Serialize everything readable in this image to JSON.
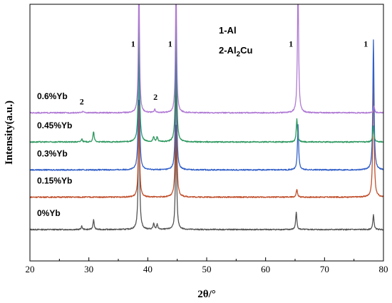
{
  "chart_data": {
    "type": "line",
    "xlabel": "2θ/°",
    "ylabel": "Intensity(a.u.)",
    "xlim": [
      20,
      80
    ],
    "x_ticks": [
      20,
      30,
      40,
      50,
      60,
      70,
      80
    ],
    "grid": false,
    "legend": {
      "placement": "top-center",
      "lines": [
        {
          "prefix": "1-Al",
          "main": "",
          "sub": "",
          "suffix": ""
        },
        {
          "prefix": "2-Al",
          "main": "",
          "sub": "2",
          "suffix": "Cu"
        }
      ]
    },
    "series": [
      {
        "name": "0%Yb",
        "color": "#555555",
        "baseline": 0,
        "peaks": [
          {
            "x": 28.8,
            "h": 0.5
          },
          {
            "x": 30.8,
            "h": 1.5
          },
          {
            "x": 38.5,
            "h": 20
          },
          {
            "x": 41.0,
            "h": 0.9
          },
          {
            "x": 41.6,
            "h": 0.8
          },
          {
            "x": 44.8,
            "h": 16
          },
          {
            "x": 65.2,
            "h": 2.7
          },
          {
            "x": 78.3,
            "h": 2.3
          }
        ]
      },
      {
        "name": "0.15%Yb",
        "color": "#c0502d",
        "baseline": 5,
        "peaks": [
          {
            "x": 38.5,
            "h": 14
          },
          {
            "x": 44.8,
            "h": 20
          },
          {
            "x": 65.3,
            "h": 1.2
          },
          {
            "x": 78.3,
            "h": 20
          }
        ]
      },
      {
        "name": "0.3%Yb",
        "color": "#3461c8",
        "baseline": 9.2,
        "peaks": [
          {
            "x": 38.5,
            "h": 20
          },
          {
            "x": 44.8,
            "h": 20
          },
          {
            "x": 65.5,
            "h": 7
          },
          {
            "x": 78.3,
            "h": 20
          }
        ]
      },
      {
        "name": "0.45%Yb",
        "color": "#2e9860",
        "baseline": 13.5,
        "peaks": [
          {
            "x": 28.8,
            "h": 0.5
          },
          {
            "x": 30.8,
            "h": 1.6
          },
          {
            "x": 38.5,
            "h": 20
          },
          {
            "x": 41.0,
            "h": 0.8
          },
          {
            "x": 41.6,
            "h": 0.8
          },
          {
            "x": 44.8,
            "h": 20
          },
          {
            "x": 65.3,
            "h": 3.5
          },
          {
            "x": 78.3,
            "h": 2.5
          }
        ]
      },
      {
        "name": "0.6%Yb",
        "color": "#b07ad4",
        "baseline": 18,
        "peaks": [
          {
            "x": 29.0,
            "h": 0.3
          },
          {
            "x": 38.5,
            "h": 20
          },
          {
            "x": 41.2,
            "h": 0.5
          },
          {
            "x": 44.8,
            "h": 20
          },
          {
            "x": 65.5,
            "h": 20
          },
          {
            "x": 78.4,
            "h": 1.0
          }
        ]
      }
    ],
    "annotations": [
      {
        "text": "1",
        "x": 37.5,
        "y": 28.2
      },
      {
        "text": "1",
        "x": 43.8,
        "y": 28.2
      },
      {
        "text": "1",
        "x": 64.3,
        "y": 28.2
      },
      {
        "text": "1",
        "x": 77.0,
        "y": 28.2
      },
      {
        "text": "2",
        "x": 28.8,
        "y": 19.3
      },
      {
        "text": "2",
        "x": 41.3,
        "y": 20.0
      }
    ]
  }
}
